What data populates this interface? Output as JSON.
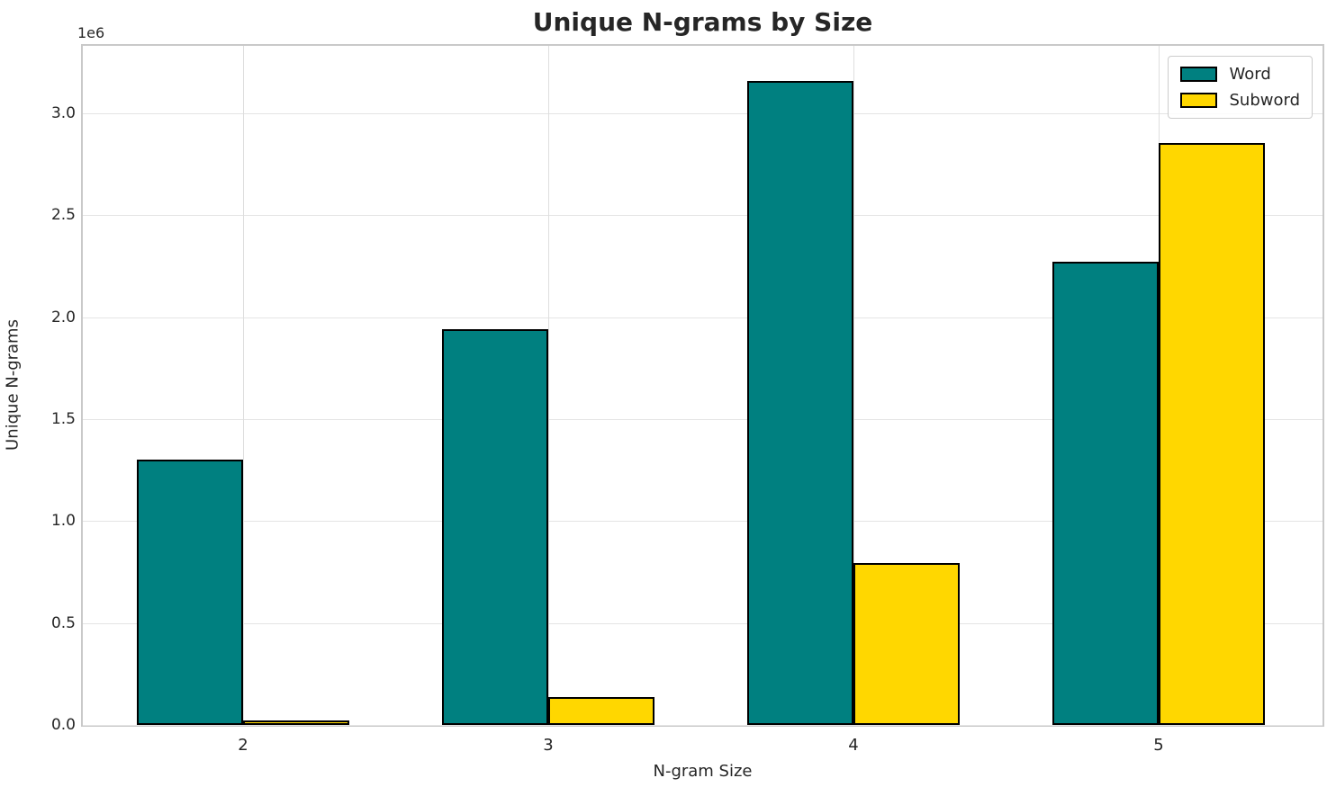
{
  "chart_data": {
    "type": "bar",
    "title": "Unique N-grams by Size",
    "xlabel": "N-gram Size",
    "ylabel": "Unique N-grams",
    "y_offset_label": "1e6",
    "categories": [
      "2",
      "3",
      "4",
      "5"
    ],
    "series": [
      {
        "name": "Word",
        "color": "#008080",
        "values": [
          1300000,
          1940000,
          3160000,
          2270000
        ]
      },
      {
        "name": "Subword",
        "color": "#FFD700",
        "values": [
          20000,
          135000,
          795000,
          2855000
        ]
      }
    ],
    "bar_edge_color": "#000000",
    "ylim": [
      0,
      3330000
    ],
    "yticks": [
      {
        "v": 0,
        "label": "0.0"
      },
      {
        "v": 500000,
        "label": "0.5"
      },
      {
        "v": 1000000,
        "label": "1.0"
      },
      {
        "v": 1500000,
        "label": "1.5"
      },
      {
        "v": 2000000,
        "label": "2.0"
      },
      {
        "v": 2500000,
        "label": "2.5"
      },
      {
        "v": 3000000,
        "label": "3.0"
      }
    ],
    "grid": true,
    "legend_position": "upper right"
  }
}
